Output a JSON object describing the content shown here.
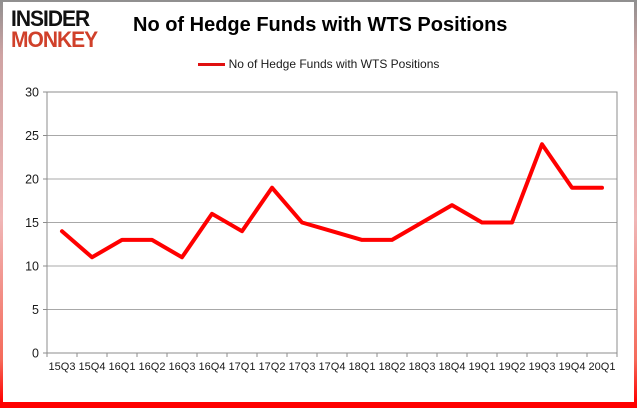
{
  "logo": {
    "line1": "INSIDER",
    "line2": "MONKEY"
  },
  "header": {
    "title": "No of Hedge Funds with WTS Positions"
  },
  "legend": {
    "label": "No of Hedge Funds with WTS Positions"
  },
  "colors": {
    "series": "#ff0000",
    "logo_red": "#d0402a",
    "grid": "#a8a8a8",
    "axis": "#8c8c8c",
    "tick_text": "#1a1a1a",
    "frame_bottom": "#ff0000"
  },
  "chart_data": {
    "type": "line",
    "title": "No of Hedge Funds with WTS Positions",
    "categories": [
      "15Q3",
      "15Q4",
      "16Q1",
      "16Q2",
      "16Q3",
      "16Q4",
      "17Q1",
      "17Q2",
      "17Q3",
      "17Q4",
      "18Q1",
      "18Q2",
      "18Q3",
      "18Q4",
      "19Q1",
      "19Q2",
      "19Q3",
      "19Q4",
      "20Q1"
    ],
    "series": [
      {
        "name": "No of Hedge Funds with WTS Positions",
        "color": "#ff0000",
        "values": [
          14,
          11,
          13,
          13,
          11,
          16,
          14,
          19,
          15,
          14,
          13,
          13,
          15,
          17,
          15,
          15,
          24,
          19,
          19
        ]
      }
    ],
    "xlabel": "",
    "ylabel": "",
    "ylim": [
      0,
      30
    ],
    "yticks": [
      0,
      5,
      10,
      15,
      20,
      25,
      30
    ],
    "grid": true,
    "legend_position": "top"
  }
}
